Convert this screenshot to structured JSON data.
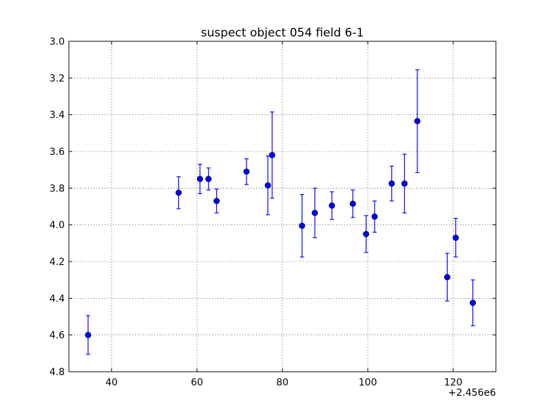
{
  "chart_data": {
    "type": "scatter",
    "title": "suspect object 054 field 6-1",
    "xlabel": "",
    "ylabel": "",
    "x_offset_label": "+2.456e6",
    "xlim": [
      30,
      130
    ],
    "ylim": [
      4.8,
      3.0
    ],
    "y_inverted": true,
    "grid": true,
    "x_ticks": [
      40,
      60,
      80,
      100,
      120
    ],
    "x_tick_labels": [
      "40",
      "60",
      "80",
      "100",
      "120"
    ],
    "y_ticks": [
      3.0,
      3.2,
      3.4,
      3.6,
      3.8,
      4.0,
      4.2,
      4.4,
      4.6,
      4.8
    ],
    "y_tick_labels": [
      "3.0",
      "3.2",
      "3.4",
      "3.6",
      "3.8",
      "4.0",
      "4.2",
      "4.4",
      "4.6",
      "4.8"
    ],
    "marker_color": "#0000ff",
    "series": [
      {
        "points": [
          {
            "x": 34.5,
            "y": 4.6,
            "err": 0.105
          },
          {
            "x": 55.7,
            "y": 3.825,
            "err": 0.087
          },
          {
            "x": 60.7,
            "y": 3.75,
            "err": 0.08
          },
          {
            "x": 62.7,
            "y": 3.75,
            "err": 0.06
          },
          {
            "x": 64.6,
            "y": 3.87,
            "err": 0.065
          },
          {
            "x": 71.6,
            "y": 3.71,
            "err": 0.07
          },
          {
            "x": 76.6,
            "y": 3.785,
            "err": 0.16
          },
          {
            "x": 77.6,
            "y": 3.62,
            "err": 0.235
          },
          {
            "x": 84.6,
            "y": 4.005,
            "err": 0.17
          },
          {
            "x": 87.6,
            "y": 3.935,
            "err": 0.135
          },
          {
            "x": 91.6,
            "y": 3.895,
            "err": 0.075
          },
          {
            "x": 96.5,
            "y": 3.885,
            "err": 0.075
          },
          {
            "x": 99.6,
            "y": 4.05,
            "err": 0.1
          },
          {
            "x": 101.6,
            "y": 3.955,
            "err": 0.085
          },
          {
            "x": 105.6,
            "y": 3.775,
            "err": 0.095
          },
          {
            "x": 108.6,
            "y": 3.775,
            "err": 0.16
          },
          {
            "x": 111.6,
            "y": 3.435,
            "err": 0.28
          },
          {
            "x": 118.6,
            "y": 4.285,
            "err": 0.13
          },
          {
            "x": 120.6,
            "y": 4.07,
            "err": 0.105
          },
          {
            "x": 124.6,
            "y": 4.425,
            "err": 0.125
          }
        ]
      }
    ]
  }
}
